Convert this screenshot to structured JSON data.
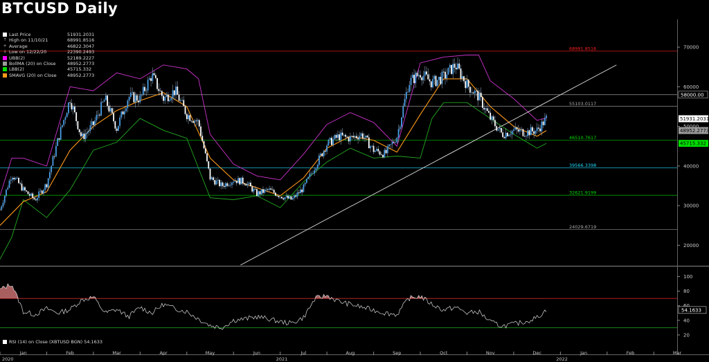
{
  "title": "BTCUSD Daily",
  "legend": [
    {
      "symbol": "square",
      "color": "#ffffff",
      "label": "Last Price",
      "value": "51931.2031"
    },
    {
      "symbol": "high",
      "color": "#bbbbbb",
      "label": "High on 11/10/21",
      "value": "68991.8516"
    },
    {
      "symbol": "avg",
      "color": "#bbbbbb",
      "label": "Average",
      "value": "46822.3047"
    },
    {
      "symbol": "low",
      "color": "#bbbbbb",
      "label": "Low on 12/22/20",
      "value": "22390.2493"
    },
    {
      "symbol": "square",
      "color": "#ff00ff",
      "label": "UBB(2)",
      "value": "52189.2227"
    },
    {
      "symbol": "square",
      "color": "#9b9b9b",
      "label": "BollMA (20)  on Close",
      "value": "48952.2773"
    },
    {
      "symbol": "square",
      "color": "#00e000",
      "label": "LBB(2)",
      "value": "45715.332"
    },
    {
      "symbol": "square",
      "color": "#ff9a1a",
      "label": "SMAVG (20)  on Close",
      "value": "48952.2773"
    }
  ],
  "rsi_legend": {
    "label": "RSI (14)  on Close (XBTUSD BGN) 54.1633"
  },
  "chart_data": [
    {
      "type": "line",
      "title": "BTCUSD Daily",
      "price_scale": {
        "ylim": [
          15000,
          77000
        ],
        "ticks": [
          20000,
          30000,
          40000,
          50000,
          60000,
          70000
        ]
      },
      "x_ticks": [
        "Jan",
        "Feb",
        "Mar",
        "Apr",
        "May",
        "Jun",
        "Jul",
        "Aug",
        "Sep",
        "Oct",
        "Nov",
        "Dec",
        "Jan",
        "Feb",
        "Mar"
      ],
      "x_tick_months_index": [
        0,
        1,
        2,
        3,
        4,
        5,
        6,
        7,
        8,
        9,
        10,
        11,
        12,
        13,
        14
      ],
      "year_labels": [
        "2020",
        "2021",
        "2022"
      ],
      "series": [
        {
          "name": "Close",
          "color": "#4a9fe8",
          "x": [
            0,
            0.25,
            0.5,
            0.75,
            1,
            1.25,
            1.5,
            1.75,
            2,
            2.25,
            2.5,
            2.75,
            3,
            3.25,
            3.5,
            3.75,
            4,
            4.25,
            4.5,
            4.75,
            5,
            5.25,
            5.5,
            5.75,
            6,
            6.25,
            6.5,
            6.75,
            7,
            7.25,
            7.5,
            7.75,
            8,
            8.25,
            8.5,
            8.75,
            9,
            9.25,
            9.5,
            9.75,
            10,
            10.25,
            10.5,
            10.75,
            11,
            11.25,
            11.5,
            11.7
          ],
          "values": [
            29000,
            38000,
            34000,
            31500,
            35500,
            47000,
            57000,
            47000,
            50500,
            57000,
            49500,
            57500,
            57000,
            63000,
            57000,
            59000,
            53000,
            51000,
            37000,
            35000,
            36500,
            36000,
            33000,
            34000,
            32500,
            31500,
            34500,
            40000,
            45500,
            47500,
            47000,
            48000,
            44000,
            43000,
            47500,
            61000,
            63500,
            61000,
            62500,
            65500,
            60500,
            57500,
            52000,
            48000,
            49000,
            48500,
            49000,
            51931
          ]
        },
        {
          "name": "SMAVG (20)  on Close",
          "color": "#ff9a1a",
          "x": [
            0,
            0.5,
            1,
            1.5,
            2,
            2.5,
            3,
            3.5,
            4,
            4.5,
            5,
            5.5,
            6,
            6.5,
            7,
            7.5,
            8,
            8.5,
            9,
            9.5,
            10,
            10.5,
            11,
            11.5,
            11.7
          ],
          "values": [
            25000,
            31000,
            33500,
            44000,
            50000,
            54000,
            56500,
            58500,
            55000,
            42000,
            36500,
            34500,
            32500,
            37000,
            44500,
            47500,
            46500,
            43500,
            53000,
            62000,
            62000,
            55000,
            50000,
            47500,
            48952
          ]
        },
        {
          "name": "UBB(2)",
          "color": "#cc33cc",
          "x": [
            0,
            0.25,
            0.5,
            1,
            1.5,
            2,
            2.5,
            3,
            3.5,
            4,
            4.25,
            4.5,
            5,
            5.5,
            6,
            6.5,
            7,
            7.5,
            8,
            8.5,
            9,
            9.5,
            10,
            10.25,
            10.5,
            11,
            11.5,
            11.7
          ],
          "values": [
            32500,
            42000,
            42000,
            40000,
            60000,
            59000,
            63500,
            62000,
            65500,
            64500,
            62000,
            48000,
            40500,
            37500,
            36500,
            43000,
            50500,
            53500,
            51000,
            45000,
            66000,
            67500,
            68000,
            68000,
            61500,
            57000,
            51500,
            52189
          ]
        },
        {
          "name": "LBB(2)",
          "color": "#22aa22",
          "x": [
            0,
            0.25,
            0.5,
            1,
            1.5,
            2,
            2.5,
            3,
            3.5,
            4,
            4.5,
            5,
            5.5,
            6,
            6.5,
            7,
            7.5,
            8,
            8.5,
            9,
            9.25,
            9.5,
            10,
            10.5,
            11,
            11.5,
            11.7
          ],
          "values": [
            16500,
            22000,
            31500,
            27000,
            34000,
            44000,
            46000,
            52000,
            49000,
            47000,
            32000,
            31500,
            32500,
            29500,
            36000,
            41000,
            44500,
            42000,
            42500,
            42000,
            52000,
            56000,
            56000,
            52000,
            48000,
            44500,
            45715
          ]
        }
      ],
      "levels": [
        {
          "value": 68991.8516,
          "label": "68991.8516",
          "color": "#ff2020"
        },
        {
          "value": 58000,
          "label": "58000.00",
          "color": "#dddddd"
        },
        {
          "value": 55103.0117,
          "label": "55103.0117",
          "color": "#aaaaaa"
        },
        {
          "value": 46510.7617,
          "label": "46510.7617",
          "color": "#00e000"
        },
        {
          "value": 39566.3398,
          "label": "39566.3398",
          "color": "#22ddff"
        },
        {
          "value": 32621.9199,
          "label": "32621.9199",
          "color": "#00dd00"
        },
        {
          "value": 24029.6719,
          "label": "24029.6719",
          "color": "#aaaaaa"
        }
      ],
      "trendline": {
        "x": [
          5.15,
          13.2
        ],
        "values": [
          15000,
          65500
        ],
        "color": "#dddddd"
      },
      "axis_value_tags": [
        {
          "value": 51931.2031,
          "label": "51931.2031",
          "bg": "#ffffff",
          "fg": "#000000"
        },
        {
          "value": 48952.2773,
          "label": "48952.2773",
          "bg": "#9b9b9b",
          "fg": "#000000"
        },
        {
          "value": 45715.332,
          "label": "45715.332",
          "bg": "#00e000",
          "fg": "#000000"
        }
      ]
    },
    {
      "type": "line",
      "title": "RSI (14)  on Close (XBTUSD BGN) 54.1633",
      "ylim": [
        0,
        110
      ],
      "ticks": [
        20,
        40,
        60,
        80,
        100
      ],
      "overbought": 70,
      "oversold": 30,
      "last_value_label": "54.1633",
      "series": [
        {
          "name": "RSI (14)",
          "color": "#dddddd",
          "x": [
            0,
            0.25,
            0.5,
            0.75,
            1,
            1.25,
            1.5,
            1.75,
            2,
            2.25,
            2.5,
            2.75,
            3,
            3.25,
            3.5,
            3.75,
            4,
            4.25,
            4.5,
            4.75,
            5,
            5.25,
            5.5,
            5.75,
            6,
            6.25,
            6.5,
            6.75,
            7,
            7.25,
            7.5,
            7.75,
            8,
            8.25,
            8.5,
            8.75,
            9,
            9.25,
            9.5,
            9.75,
            10,
            10.25,
            10.5,
            10.75,
            11,
            11.25,
            11.5,
            11.7
          ],
          "values": [
            82,
            90,
            52,
            48,
            56,
            50,
            55,
            68,
            72,
            50,
            55,
            45,
            58,
            50,
            62,
            56,
            52,
            42,
            33,
            30,
            40,
            42,
            45,
            42,
            38,
            36,
            44,
            70,
            74,
            66,
            62,
            58,
            54,
            50,
            48,
            70,
            73,
            62,
            54,
            58,
            50,
            52,
            38,
            32,
            35,
            38,
            44,
            54
          ]
        }
      ]
    }
  ]
}
